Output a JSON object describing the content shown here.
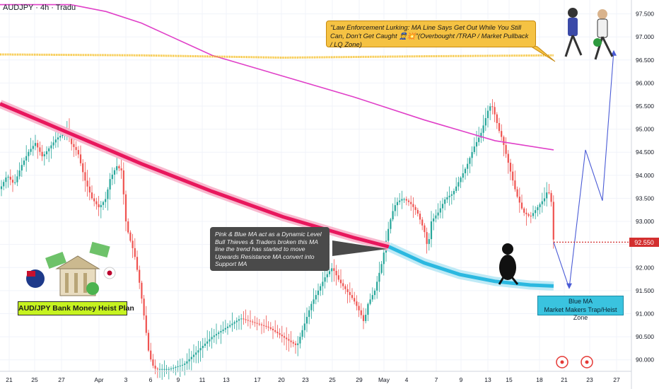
{
  "header": {
    "symbol_title": "AUDJPY · 4h · Tradu"
  },
  "annotations": {
    "law_enforcement": "\"Law Enforcement Lurking: MA Line Says Get Out While You Still Can, Don't Get Caught 👮💥\"(Overbought /TRAP / Market Pullback / LQ Zone)",
    "ma_support_note": "Pink & Blue MA act as a Dynamic Level Bull Thieves & Traders broken this MA line the trend has started to move Upwards Resistance MA convert into Support MA",
    "blue_ma_line1": "Blue MA",
    "blue_ma_line2": "Market Makers Trap/Heist Zone",
    "plan_label": "AUD/JPY Bank Money Heist Plan"
  },
  "chart_data": {
    "type": "line",
    "symbol": "AUDJPY",
    "timeframe": "4h",
    "current_price": 92.55,
    "ylim": [
      89.75,
      97.8
    ],
    "y_ticks": [
      90.0,
      90.5,
      91.0,
      91.5,
      92.0,
      92.5,
      93.0,
      93.5,
      94.0,
      94.5,
      95.0,
      95.5,
      96.0,
      96.5,
      97.0,
      97.5
    ],
    "x_ticks": [
      "21",
      "25",
      "27",
      "Apr",
      "3",
      "6",
      "9",
      "11",
      "13",
      "17",
      "20",
      "23",
      "25",
      "29",
      "May",
      "4",
      "7",
      "9",
      "13",
      "15",
      "18",
      "21",
      "23",
      "27"
    ],
    "series": [
      {
        "name": "Price",
        "color": "#26a69a",
        "x": [
          0,
          10,
          20,
          30,
          40,
          50,
          60,
          70,
          80,
          90,
          95,
          100,
          110,
          115,
          120,
          130,
          140,
          150,
          155,
          165,
          172,
          178,
          182,
          190,
          198,
          205,
          210,
          215,
          220,
          240,
          260,
          280,
          300,
          320,
          340,
          360,
          380,
          400,
          420,
          440,
          460,
          470,
          480,
          490,
          500,
          510,
          515,
          520,
          530,
          540,
          545,
          550,
          555,
          560,
          570,
          580,
          590,
          600,
          605,
          610,
          620,
          630,
          640,
          650,
          660,
          670,
          680,
          690,
          695,
          700,
          705,
          710,
          720,
          730,
          740,
          750,
          760,
          770,
          775,
          780,
          783
        ],
        "y": [
          93.7,
          94.0,
          93.8,
          94.2,
          94.5,
          94.7,
          94.4,
          94.6,
          94.8,
          94.9,
          95.0,
          94.7,
          94.5,
          94.2,
          93.9,
          93.5,
          93.3,
          93.5,
          93.9,
          94.2,
          94.1,
          93.0,
          92.7,
          92.3,
          91.6,
          90.8,
          90.2,
          89.9,
          89.8,
          89.8,
          89.9,
          90.2,
          90.5,
          90.7,
          90.9,
          90.8,
          90.7,
          90.5,
          90.3,
          91.2,
          91.8,
          92.0,
          91.7,
          91.5,
          91.3,
          91.0,
          90.8,
          91.2,
          91.5,
          92.1,
          92.5,
          92.9,
          93.2,
          93.4,
          93.5,
          93.4,
          93.2,
          92.8,
          92.4,
          93.0,
          93.2,
          93.5,
          93.6,
          93.9,
          94.2,
          94.6,
          94.9,
          95.4,
          95.55,
          95.3,
          95.0,
          94.8,
          94.2,
          93.6,
          93.2,
          93.1,
          93.3,
          93.5,
          93.7,
          93.4,
          92.55
        ]
      },
      {
        "name": "Magenta MA",
        "color": "#e040c8",
        "x": [
          0,
          100,
          150,
          200,
          250,
          300,
          400,
          500,
          600,
          700,
          783
        ],
        "y": [
          97.7,
          97.7,
          97.55,
          97.3,
          96.95,
          96.6,
          96.15,
          95.7,
          95.2,
          94.75,
          94.55
        ]
      },
      {
        "name": "Gold MA",
        "color": "#f4b400",
        "x": [
          0,
          200,
          400,
          600,
          783
        ],
        "y": [
          96.62,
          96.6,
          96.55,
          96.58,
          96.6
        ]
      },
      {
        "name": "Pink MA",
        "color": "#e8175d",
        "x": [
          0,
          100,
          200,
          300,
          400,
          500,
          550
        ],
        "y": [
          95.55,
          94.9,
          94.25,
          93.65,
          93.1,
          92.65,
          92.45
        ]
      },
      {
        "name": "Blue MA",
        "color": "#2bb8e0",
        "x": [
          550,
          600,
          650,
          700,
          750,
          783
        ],
        "y": [
          92.45,
          92.1,
          91.85,
          91.7,
          91.62,
          91.6
        ]
      },
      {
        "name": "Projection",
        "color": "#4a5bd6",
        "x": [
          783,
          805,
          828,
          852,
          868
        ],
        "y": [
          92.55,
          91.55,
          94.55,
          93.45,
          96.7
        ]
      }
    ],
    "grid": true
  }
}
